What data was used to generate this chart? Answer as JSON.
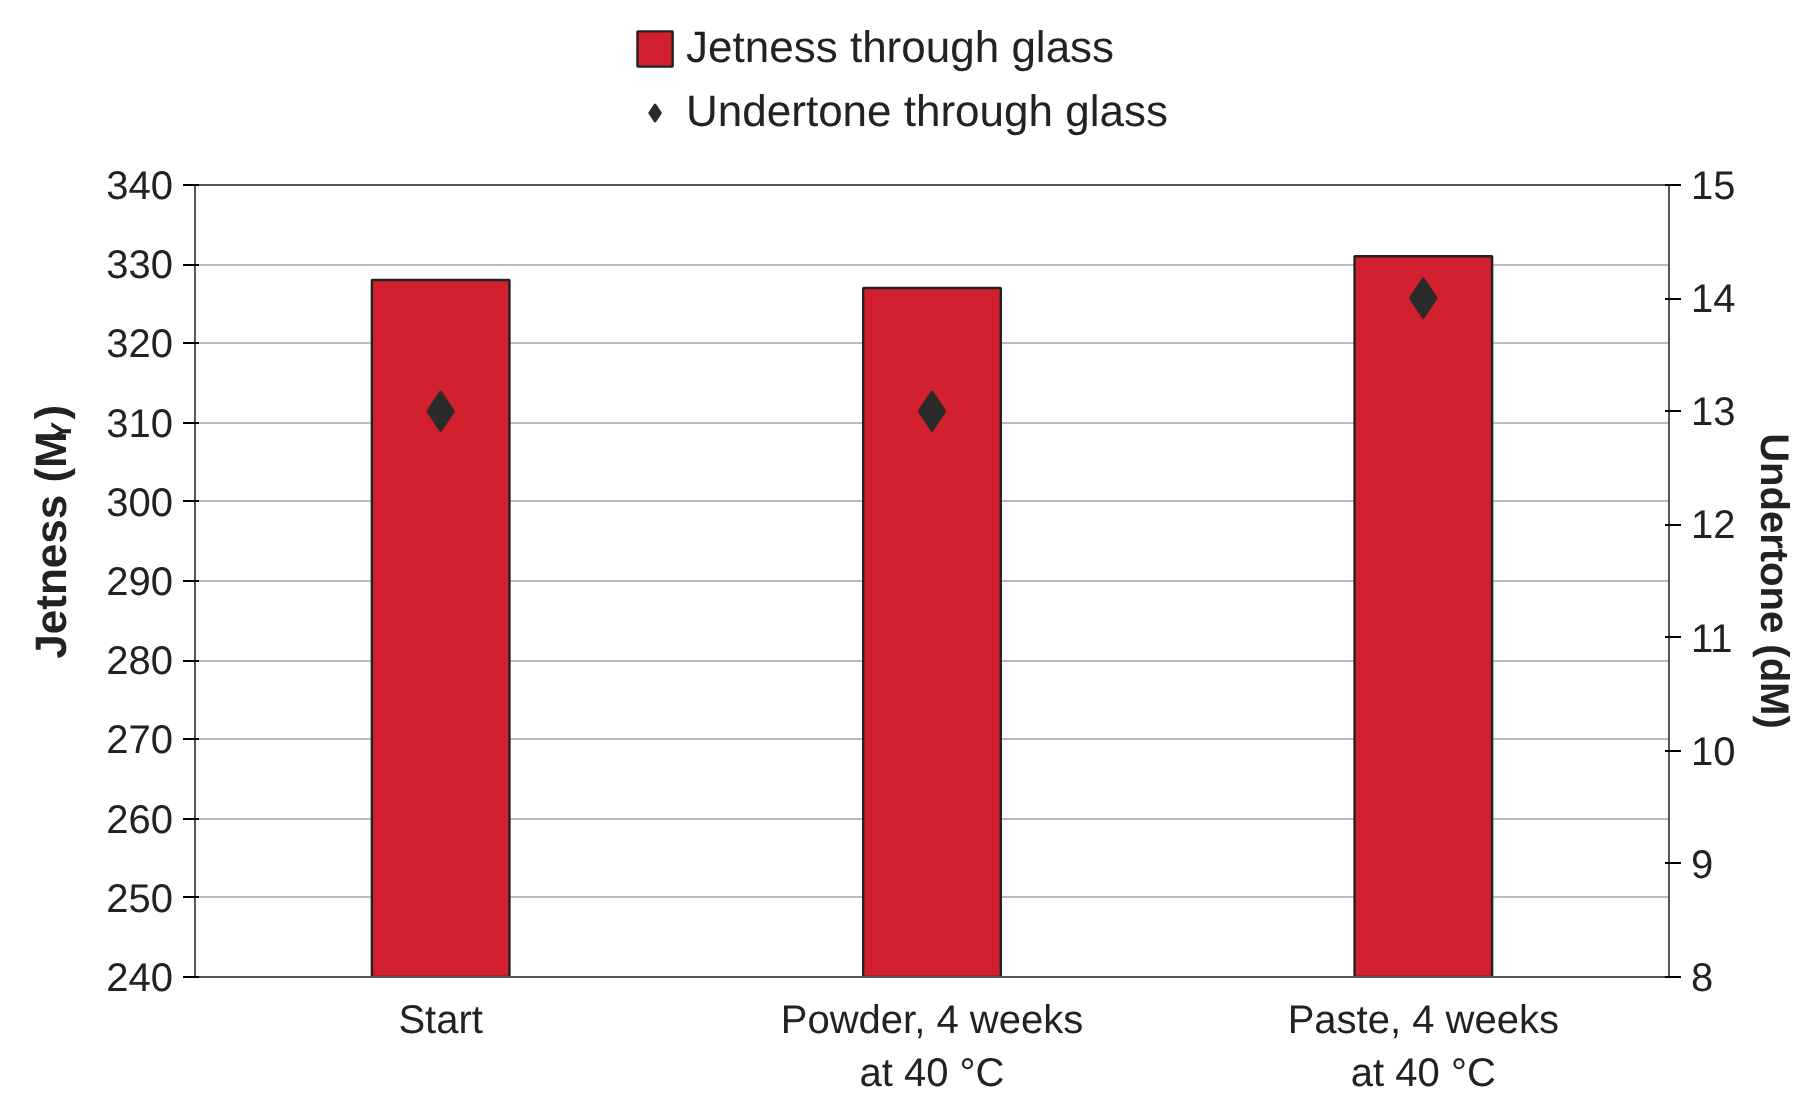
{
  "chart_data": {
    "type": "bar",
    "categories": [
      "Start",
      "Powder, 4 weeks at 40 °C",
      "Paste, 4 weeks at 40 °C"
    ],
    "series": [
      {
        "name": "Jetness through glass",
        "color": "#d2202f",
        "values": [
          328,
          327,
          331
        ]
      },
      {
        "name": "Undertone through glass",
        "type": "scatter",
        "axis": "y2",
        "color": "#2b2b2b",
        "values": [
          13,
          13,
          14
        ]
      }
    ],
    "ylabel": "Jetness (M$_{Y}$)",
    "y2label": "Undertone (dM)",
    "ylim": [
      240,
      340
    ],
    "yticks": [
      240,
      250,
      260,
      270,
      280,
      290,
      300,
      310,
      320,
      330,
      340
    ],
    "y2lim": [
      8,
      15
    ],
    "y2ticks": [
      8,
      9,
      10,
      11,
      12,
      13,
      14,
      15
    ],
    "grid": "y",
    "legend": "top",
    "marker": "diamond"
  }
}
